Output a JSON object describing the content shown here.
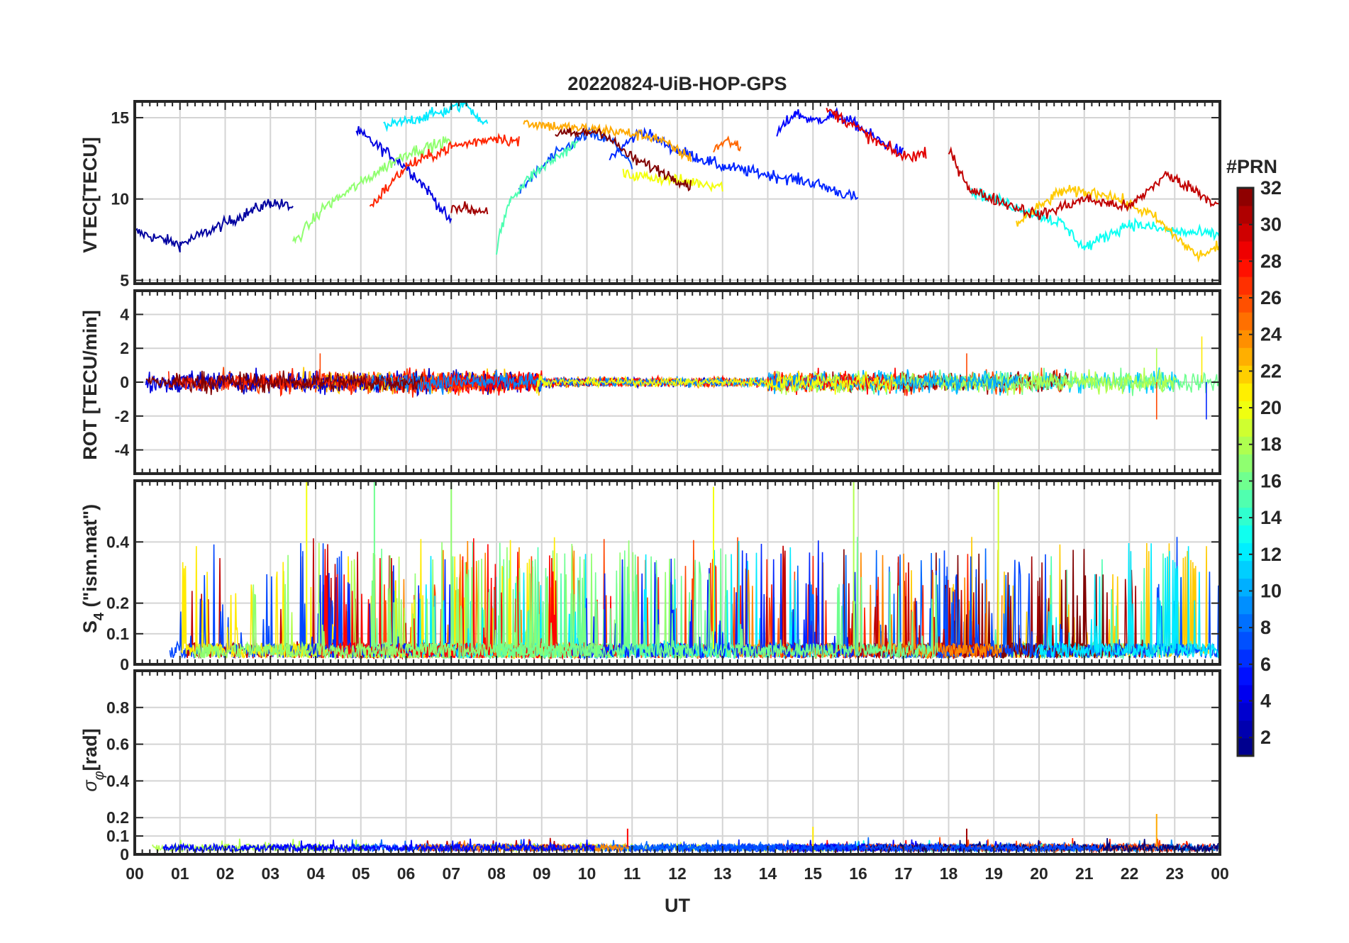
{
  "figure": {
    "title": "20220824-UiB-HOP-GPS",
    "xlabel": "UT",
    "x_tick_labels": [
      "00",
      "01",
      "02",
      "03",
      "04",
      "05",
      "06",
      "07",
      "08",
      "09",
      "10",
      "11",
      "12",
      "13",
      "14",
      "15",
      "16",
      "17",
      "18",
      "19",
      "20",
      "21",
      "22",
      "23",
      "00"
    ]
  },
  "colorbar": {
    "label": "#PRN",
    "tick_labels": [
      "2",
      "4",
      "6",
      "8",
      "10",
      "12",
      "14",
      "16",
      "18",
      "20",
      "22",
      "24",
      "26",
      "28",
      "30",
      "32"
    ],
    "range": [
      1,
      32
    ],
    "colormap": "jet",
    "levels": 32
  },
  "chart_data": [
    {
      "type": "line",
      "panel": "VTEC",
      "ylabel": "VTEC[TECU]",
      "ylim": [
        4.8,
        16
      ],
      "y_ticks": [
        5,
        10,
        15
      ],
      "y_tick_labels": [
        "5",
        "10",
        "15"
      ],
      "xlim": [
        0,
        24
      ],
      "grid": true,
      "series_note_x_unit": "UT hours",
      "series": [
        {
          "prn": 2,
          "x": [
            0,
            1,
            2,
            3,
            3.5
          ],
          "y": [
            8,
            7.2,
            8.5,
            9.8,
            9.5
          ]
        },
        {
          "prn": 4,
          "x": [
            4.9,
            5.5,
            6.0,
            6.5,
            7.0
          ],
          "y": [
            14.2,
            13.0,
            12.0,
            10.5,
            8.5
          ]
        },
        {
          "prn": 6,
          "x": [
            10.5,
            11.2,
            12.0,
            13.0,
            14.0,
            15.0,
            16.0
          ],
          "y": [
            12.5,
            14.2,
            13.0,
            12.0,
            11.5,
            11.0,
            10.0
          ]
        },
        {
          "prn": 5,
          "x": [
            14.2,
            14.6,
            15.0,
            15.5,
            16.0,
            16.5,
            17.0
          ],
          "y": [
            14.0,
            15.3,
            14.8,
            15.2,
            14.5,
            13.5,
            12.8
          ]
        },
        {
          "prn": 7,
          "x": [
            8.5,
            9.2,
            10.0,
            10.6,
            11.0
          ],
          "y": [
            10.5,
            12.5,
            14.0,
            13.5,
            12.0
          ]
        },
        {
          "prn": 12,
          "x": [
            5.5,
            6.3,
            7.0,
            7.3,
            7.8
          ],
          "y": [
            14.4,
            15.0,
            15.5,
            15.9,
            14.5
          ]
        },
        {
          "prn": 15,
          "x": [
            8.0,
            8.3,
            8.8,
            9.3,
            9.8
          ],
          "y": [
            7.0,
            10.0,
            11.5,
            12.5,
            13.5
          ]
        },
        {
          "prn": 17,
          "x": [
            3.5,
            4.2,
            5.0,
            6.0,
            7.0
          ],
          "y": [
            7.3,
            9.5,
            11.0,
            12.8,
            13.6
          ]
        },
        {
          "prn": 20,
          "x": [
            10.8,
            11.5,
            12.5,
            13.0
          ],
          "y": [
            11.5,
            11.3,
            11.0,
            10.8
          ]
        },
        {
          "prn": 23,
          "x": [
            8.6,
            9.5,
            10.5,
            11.5,
            12.3
          ],
          "y": [
            14.7,
            14.4,
            14.2,
            13.8,
            12.5
          ]
        },
        {
          "prn": 25,
          "x": [
            12.8,
            13.1,
            13.4
          ],
          "y": [
            13.1,
            13.6,
            13.2
          ]
        },
        {
          "prn": 27,
          "x": [
            5.2,
            6.0,
            7.0,
            8.0,
            8.5
          ],
          "y": [
            9.5,
            12.0,
            13.2,
            13.8,
            13.5
          ]
        },
        {
          "prn": 29,
          "x": [
            15.3,
            15.8,
            16.4,
            17.0,
            17.5
          ],
          "y": [
            15.5,
            14.7,
            13.5,
            12.6,
            12.8
          ]
        },
        {
          "prn": 31,
          "x": [
            7.0,
            7.5,
            7.8
          ],
          "y": [
            9.6,
            9.3,
            9.3
          ]
        },
        {
          "prn": 32,
          "x": [
            9.3,
            9.8,
            10.3,
            11.0,
            11.8,
            12.3
          ],
          "y": [
            14.0,
            14.0,
            14.2,
            12.5,
            11.5,
            10.8
          ]
        },
        {
          "prn": 13,
          "x": [
            18.5,
            19.5,
            20.5,
            21.0,
            22.0,
            23.0,
            24.0
          ],
          "y": [
            10.5,
            9.5,
            8.5,
            7.0,
            8.5,
            8.0,
            7.8
          ]
        },
        {
          "prn": 22,
          "x": [
            19.5,
            20.5,
            21.5,
            22.5,
            23.5,
            24.0
          ],
          "y": [
            8.5,
            10.5,
            10.3,
            9.0,
            6.5,
            7.0
          ]
        },
        {
          "prn": 30,
          "x": [
            18.0,
            18.5,
            19.0,
            20.0,
            21.0,
            22.0,
            22.8,
            23.5,
            24.0
          ],
          "y": [
            13.0,
            10.5,
            10.0,
            9.0,
            10.0,
            9.5,
            11.5,
            10.5,
            9.5
          ]
        }
      ]
    },
    {
      "type": "line",
      "panel": "ROT",
      "ylabel": "ROT [TECU/min]",
      "ylim": [
        -5.4,
        5.4
      ],
      "y_ticks": [
        -4,
        -2,
        0,
        2,
        4
      ],
      "y_tick_labels": [
        "-4",
        "-2",
        "0",
        "2",
        "4"
      ],
      "xlim": [
        0,
        24
      ],
      "grid": true,
      "description_values": {
        "typical_range": [
          -1,
          1
        ],
        "spikes": [
          [
            4.1,
            1.7
          ],
          [
            18.4,
            1.7
          ],
          [
            22.6,
            2.0
          ],
          [
            22.6,
            -2.2
          ],
          [
            23.6,
            2.7
          ],
          [
            23.7,
            -2.2
          ]
        ]
      }
    },
    {
      "type": "line",
      "panel": "S4",
      "ylabel": "S4 (\"ism.mat\")",
      "ylabel_parts": {
        "main": "S",
        "subscript": "4",
        "rest": " (\"ism.mat\")"
      },
      "ylim": [
        0,
        0.6
      ],
      "y_ticks": [
        0,
        0.1,
        0.2,
        0.4
      ],
      "y_tick_labels": [
        "0",
        "0.1",
        "0.2",
        "0.4"
      ],
      "xlim": [
        0,
        24
      ],
      "grid": true,
      "description_values": {
        "baseline": 0.05,
        "peaks": [
          [
            3.8,
            0.6
          ],
          [
            5.3,
            0.6
          ],
          [
            7.0,
            0.6
          ],
          [
            12.8,
            0.58
          ],
          [
            15.9,
            0.6
          ],
          [
            19.1,
            0.6
          ],
          [
            24.0,
            0.6
          ]
        ]
      }
    },
    {
      "type": "line",
      "panel": "sigma_phi",
      "ylabel": "σ_φ[rad]",
      "ylabel_parts": {
        "main": "σ",
        "subscript": "φ",
        "rest": "[rad]"
      },
      "ylim": [
        0,
        1.0
      ],
      "y_ticks": [
        0,
        0.1,
        0.2,
        0.4,
        0.6,
        0.8
      ],
      "y_tick_labels": [
        "0",
        "0.1",
        "0.2",
        "0.4",
        "0.6",
        "0.8"
      ],
      "xlim": [
        0,
        24
      ],
      "grid": true,
      "description_values": {
        "baseline": 0.04,
        "peaks": [
          [
            10.9,
            0.14
          ],
          [
            15.0,
            0.15
          ],
          [
            18.4,
            0.14
          ],
          [
            22.6,
            0.22
          ]
        ]
      }
    }
  ]
}
